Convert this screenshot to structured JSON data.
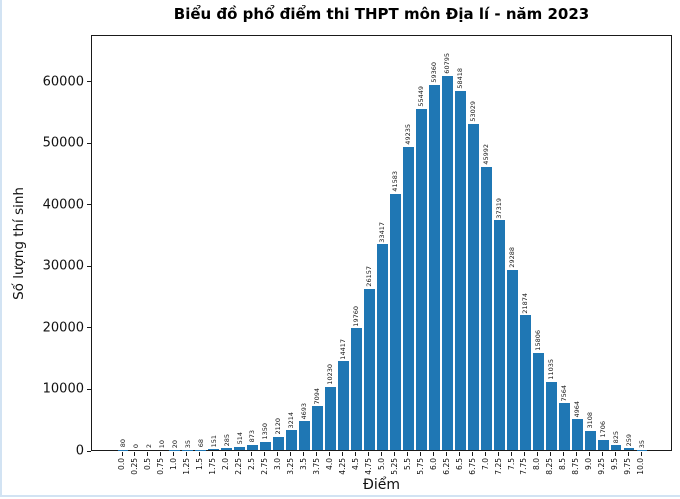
{
  "page": {
    "background": "#ffffff",
    "edge_border_color": "#d2e3f3"
  },
  "chart_data": {
    "type": "bar",
    "title": "Biểu đồ phổ điểm thi THPT môn Địa lí - năm 2023",
    "xlabel": "Điểm",
    "ylabel": "Số lượng thí sinh",
    "categories": [
      "0.0",
      "0.25",
      "0.5",
      "0.75",
      "1.0",
      "1.25",
      "1.5",
      "1.75",
      "2.0",
      "2.25",
      "2.5",
      "2.75",
      "3.0",
      "3.25",
      "3.5",
      "3.75",
      "4.0",
      "4.25",
      "4.5",
      "4.75",
      "5.0",
      "5.25",
      "5.5",
      "5.75",
      "6.0",
      "6.25",
      "6.5",
      "6.75",
      "7.0",
      "7.25",
      "7.5",
      "7.75",
      "8.0",
      "8.25",
      "8.5",
      "8.75",
      "9.0",
      "9.25",
      "9.5",
      "9.75",
      "10.0"
    ],
    "values": [
      80,
      0,
      2,
      10,
      20,
      35,
      68,
      151,
      285,
      514,
      873,
      1350,
      2120,
      3214,
      4693,
      7094,
      10230,
      14417,
      19760,
      26157,
      33417,
      41583,
      49235,
      55449,
      59360,
      60795,
      58418,
      53029,
      45992,
      37319,
      29288,
      21874,
      15806,
      11035,
      7564,
      4964,
      3108,
      1706,
      825,
      259,
      35
    ],
    "ylim": [
      0,
      67600
    ],
    "yticks": [
      0,
      10000,
      20000,
      30000,
      40000,
      50000,
      60000
    ],
    "bar_color": "#1f77b4",
    "tick_color": "#1a1a1a",
    "grid": false,
    "legend_position": "none",
    "bar_value_labels_rotation_deg": 90,
    "x_tick_labels_rotation_deg": 90
  }
}
